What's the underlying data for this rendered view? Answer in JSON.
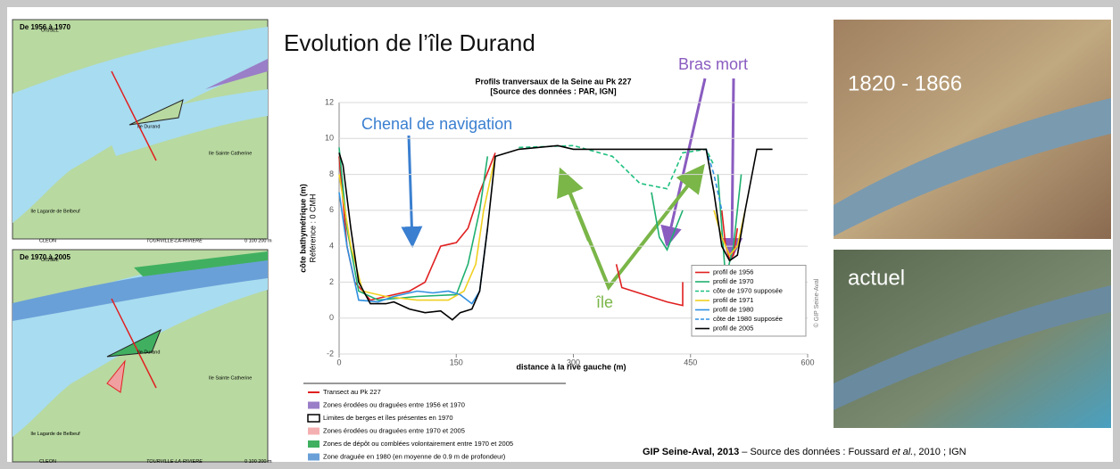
{
  "slide_title": "Evolution de l’île Durand",
  "maps": [
    {
      "title": "De 1956 à 1970",
      "labels": [
        "OISSEL",
        "Ile Durand",
        "Ile Sainte Catherine",
        "Ile Lagarde de Belbeuf",
        "CLEON",
        "TOURVILLE-LA-RIVIERE",
        "0    100   200 m"
      ]
    },
    {
      "title": "De 1970 à 2005",
      "labels": [
        "OISSEL",
        "Ile Durand",
        "Ile Sainte Catherine",
        "Ile Lagarde de Belbeuf",
        "CLEON",
        "TOURVILLE-LA-RIVIERE",
        "0    100   200 m"
      ]
    }
  ],
  "photos": [
    {
      "label": "1820 - 1866"
    },
    {
      "label": "actuel"
    }
  ],
  "legend_box": [
    "Transect au Pk 227",
    "Zones érodées ou draguées entre 1956 et 1970",
    "Limites de berges et îles présentes en 1970",
    "Zones érodées ou draguées entre 1970 et 2005",
    "Zones de dépôt ou comblées volontairement entre 1970 et 2005",
    "Zone draguée en 1980 (en moyenne de 0.9 m de profondeur)"
  ],
  "footer": [
    "GIP Seine-Aval, 2013",
    " – Source des données : Foussard ",
    "et al.",
    ", 2010 ; IGN"
  ],
  "chart_data": {
    "type": "line",
    "title": "Profils tranversaux de la Seine au Pk 227",
    "subtitle": "[Source des données : PAR, IGN]",
    "xlabel": "distance à la rive gauche (m)",
    "ylabel": "côte bathymétrique (m)",
    "ylabel2": "Référence : 0 CMH",
    "credit": "© GIP Seine-Aval",
    "xlim": [
      0,
      600
    ],
    "ylim": [
      -2,
      12
    ],
    "xticks": [
      0,
      150,
      300,
      450,
      600
    ],
    "yticks": [
      -2,
      0,
      2,
      4,
      6,
      8,
      10,
      12
    ],
    "grid": true,
    "legend": "lower right",
    "series": [
      {
        "name": "profil de 1956",
        "color": "#e02020",
        "dash": false,
        "x": [
          0,
          10,
          20,
          40,
          60,
          90,
          110,
          130,
          150,
          165,
          180,
          200,
          null,
          355,
          362,
          420,
          440,
          440,
          null,
          490,
          495,
          500,
          505,
          510
        ],
        "values": [
          9,
          4,
          2,
          1,
          1.2,
          1.5,
          2,
          4,
          4.2,
          5,
          7,
          9.2,
          null,
          3,
          1.7,
          0.9,
          0.7,
          2,
          null,
          6,
          4,
          3.3,
          3.5,
          5
        ]
      },
      {
        "name": "profil de 1970",
        "color": "#1fb070",
        "dash": false,
        "x": [
          0,
          10,
          25,
          50,
          100,
          150,
          165,
          180,
          190,
          null,
          400,
          410,
          420,
          440,
          null,
          485,
          490,
          495,
          505,
          515
        ],
        "values": [
          9.5,
          5,
          1.5,
          1,
          1.2,
          1.3,
          3,
          6,
          9,
          null,
          7,
          4.5,
          3.8,
          6,
          null,
          8,
          5,
          2.2,
          4,
          8
        ]
      },
      {
        "name": "côte de 1970 supposée",
        "color": "#20c080",
        "dash": true,
        "x": [
          230,
          300,
          350,
          385,
          420,
          440,
          470,
          480
        ],
        "values": [
          9.5,
          9.6,
          9,
          7.5,
          7.2,
          9.2,
          9.4,
          8.5
        ]
      },
      {
        "name": "profil de 1971",
        "color": "#f0d020",
        "dash": false,
        "x": [
          0,
          15,
          30,
          60,
          100,
          140,
          160,
          175,
          185,
          200,
          null,
          480,
          490,
          500,
          510,
          520
        ],
        "values": [
          8,
          4,
          1.5,
          1.2,
          1,
          1,
          1.5,
          3,
          6,
          9,
          null,
          6,
          4.5,
          3.5,
          4,
          6
        ]
      },
      {
        "name": "profil de 1980",
        "color": "#3090e0",
        "dash": false,
        "x": [
          0,
          10,
          25,
          50,
          70,
          100,
          120,
          140,
          155,
          170,
          180,
          190
        ],
        "values": [
          7,
          4,
          1,
          0.9,
          1.2,
          1.5,
          1.4,
          1.5,
          1.3,
          0.8,
          1.5,
          5
        ]
      },
      {
        "name": "côte de 1980 supposée",
        "color": "#3090e0",
        "dash": true,
        "x": [
          470,
          480,
          490
        ],
        "values": [
          9.4,
          8,
          6
        ]
      },
      {
        "name": "profil de 2005",
        "color": "#000000",
        "dash": false,
        "x": [
          0,
          5,
          15,
          25,
          40,
          60,
          70,
          90,
          110,
          130,
          145,
          155,
          170,
          180,
          190,
          200,
          230,
          280,
          300,
          450,
          470,
          480,
          490,
          500,
          510,
          520,
          535,
          555
        ],
        "values": [
          9.2,
          8.5,
          5,
          2,
          0.8,
          0.8,
          0.9,
          0.5,
          0.3,
          0.4,
          -0.1,
          0.3,
          0.5,
          1.5,
          5,
          9,
          9.4,
          9.6,
          9.4,
          9.4,
          9.4,
          7,
          4,
          3.2,
          3.5,
          6,
          9.4,
          9.4
        ]
      }
    ],
    "annotations": [
      {
        "text": "Chenal de navigation",
        "color": "#3a7fd0"
      },
      {
        "text": "Bras mort",
        "color": "#8a5cc0"
      },
      {
        "text": "île",
        "color": "#7ab648"
      }
    ]
  }
}
